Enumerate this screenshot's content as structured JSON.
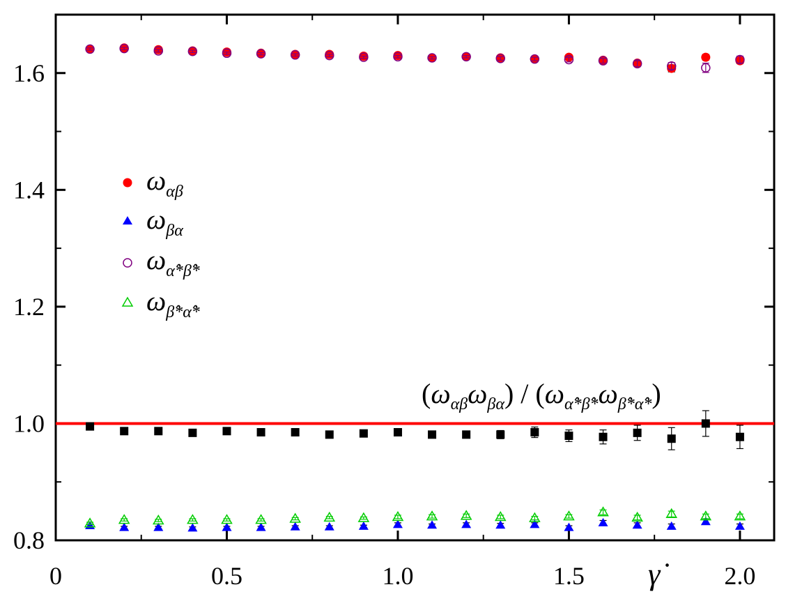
{
  "chart_data": {
    "type": "scatter",
    "title": "",
    "xlabel": "γ̇",
    "ylabel": "",
    "xlim": [
      0,
      2.1
    ],
    "ylim": [
      0.8,
      1.7
    ],
    "grid": false,
    "legend_position": "left",
    "x_ticks": [
      {
        "value": 0,
        "label": "0"
      },
      {
        "value": 0.5,
        "label": "0.5"
      },
      {
        "value": 1.0,
        "label": "1.0"
      },
      {
        "value": 1.5,
        "label": "1.5"
      },
      {
        "value": 2.0,
        "label": "2.0"
      }
    ],
    "y_ticks": [
      {
        "value": 0.8,
        "label": "0.8"
      },
      {
        "value": 1.0,
        "label": "1.0"
      },
      {
        "value": 1.2,
        "label": "1.2"
      },
      {
        "value": 1.4,
        "label": "1.4"
      },
      {
        "value": 1.6,
        "label": "1.6"
      }
    ],
    "x": [
      0.1,
      0.2,
      0.3,
      0.4,
      0.5,
      0.6,
      0.7,
      0.8,
      0.9,
      1.0,
      1.1,
      1.2,
      1.3,
      1.4,
      1.5,
      1.6,
      1.7,
      1.8,
      1.9,
      2.0
    ],
    "series": [
      {
        "name": "ω",
        "sub": "αβ",
        "marker": "filled-circle",
        "color": "#ff0000",
        "values": [
          1.641,
          1.643,
          1.64,
          1.638,
          1.636,
          1.634,
          1.632,
          1.632,
          1.629,
          1.63,
          1.626,
          1.628,
          1.626,
          1.624,
          1.627,
          1.622,
          1.617,
          1.608,
          1.627,
          1.621
        ],
        "errors": [
          0.002,
          0.002,
          0.002,
          0.002,
          0.002,
          0.002,
          0.002,
          0.002,
          0.002,
          0.002,
          0.002,
          0.002,
          0.003,
          0.003,
          0.003,
          0.004,
          0.004,
          0.006,
          0.005,
          0.005
        ]
      },
      {
        "name": "ω",
        "sub": "βα",
        "marker": "filled-triangle",
        "color": "#0000ff",
        "values": [
          0.825,
          0.822,
          0.822,
          0.821,
          0.822,
          0.822,
          0.823,
          0.823,
          0.824,
          0.827,
          0.826,
          0.827,
          0.826,
          0.827,
          0.822,
          0.83,
          0.826,
          0.824,
          0.832,
          0.824
        ],
        "errors": [
          0.002,
          0.002,
          0.002,
          0.002,
          0.002,
          0.002,
          0.002,
          0.002,
          0.002,
          0.003,
          0.002,
          0.003,
          0.003,
          0.003,
          0.003,
          0.004,
          0.004,
          0.004,
          0.005,
          0.004
        ]
      },
      {
        "name": "ω",
        "sub": "α̂*β̂*",
        "marker": "open-circle",
        "color": "#800080",
        "values": [
          1.641,
          1.642,
          1.638,
          1.637,
          1.634,
          1.633,
          1.631,
          1.63,
          1.627,
          1.628,
          1.626,
          1.628,
          1.625,
          1.624,
          1.623,
          1.621,
          1.616,
          1.612,
          1.609,
          1.623
        ],
        "errors": [
          0.002,
          0.002,
          0.002,
          0.002,
          0.002,
          0.002,
          0.002,
          0.002,
          0.002,
          0.002,
          0.002,
          0.002,
          0.003,
          0.003,
          0.004,
          0.004,
          0.005,
          0.006,
          0.008,
          0.006
        ]
      },
      {
        "name": "ω",
        "sub": "β̂*α̂*",
        "marker": "open-triangle",
        "color": "#00cc00",
        "values": [
          0.829,
          0.835,
          0.834,
          0.835,
          0.835,
          0.835,
          0.837,
          0.839,
          0.838,
          0.84,
          0.841,
          0.842,
          0.84,
          0.838,
          0.841,
          0.848,
          0.839,
          0.845,
          0.841,
          0.841
        ],
        "errors": [
          0.002,
          0.002,
          0.002,
          0.002,
          0.002,
          0.002,
          0.002,
          0.002,
          0.002,
          0.003,
          0.003,
          0.003,
          0.003,
          0.003,
          0.003,
          0.004,
          0.004,
          0.005,
          0.004,
          0.004
        ]
      },
      {
        "name": "(ωαβωβα)/(ωα̂*β̂*ωβ̂*α̂*)",
        "marker": "filled-square",
        "color": "#000000",
        "values": [
          0.995,
          0.987,
          0.987,
          0.984,
          0.987,
          0.985,
          0.985,
          0.981,
          0.983,
          0.985,
          0.981,
          0.981,
          0.981,
          0.985,
          0.979,
          0.977,
          0.984,
          0.974,
          1.0,
          0.977
        ],
        "errors": [
          0.004,
          0.004,
          0.004,
          0.004,
          0.004,
          0.004,
          0.004,
          0.004,
          0.004,
          0.005,
          0.005,
          0.005,
          0.007,
          0.009,
          0.01,
          0.012,
          0.013,
          0.019,
          0.022,
          0.02
        ]
      }
    ],
    "reference_line": {
      "y": 1.0,
      "color": "#ff0000"
    }
  },
  "legend": {
    "items": [
      {
        "symbol": "ω",
        "sub": "αβ"
      },
      {
        "symbol": "ω",
        "sub": "βα"
      },
      {
        "symbol": "ω",
        "sub": "α̂*β̂*"
      },
      {
        "symbol": "ω",
        "sub": "β̂*α̂*"
      }
    ]
  },
  "ratio_label": {
    "open1": "(",
    "w1": "ω",
    "s1": "αβ",
    "w2": "ω",
    "s2": "βα",
    "close1": ")",
    "slash": " / ",
    "open2": "(",
    "w3": "ω",
    "s3": "α̂*β̂*",
    "w4": "ω",
    "s4": "β̂*α̂*",
    "close2": ")"
  }
}
